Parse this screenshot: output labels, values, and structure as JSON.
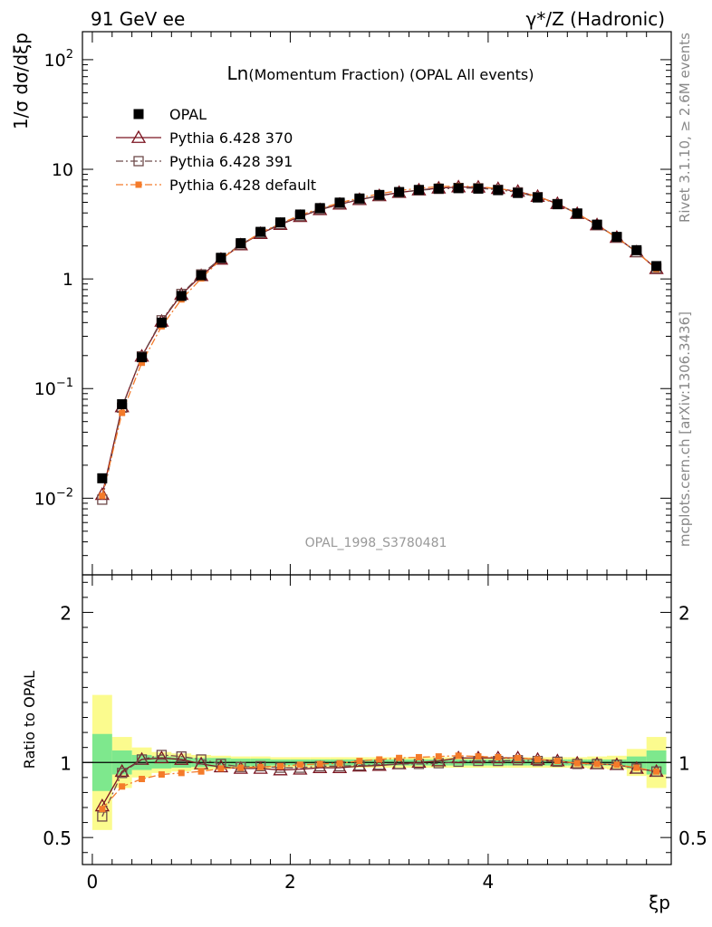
{
  "header": {
    "left_label": "91 GeV ee",
    "right_label": "γ*/Z (Hadronic)"
  },
  "side_labels": {
    "rivet": "Rivet 3.1.10, ≥ 2.6M events",
    "mcplots": "mcplots.cern.ch [arXiv:1306.3436]"
  },
  "colors": {
    "opal": "#000000",
    "py370": "#7b1420",
    "py391": "#6e4a4a",
    "pydefault": "#f47b2a",
    "band_inner": "#7ee88d",
    "band_outer": "#fbfb8e"
  },
  "chart_data": [
    {
      "type": "scatter",
      "panel": "main",
      "title": "Ln(Momentum Fraction) (OPAL All events)",
      "title_prefix": "Ln",
      "title_rest": "(Momentum Fraction) (OPAL All events)",
      "ylabel": "1/σ dσ/dξp",
      "xlabel": "",
      "yscale": "log",
      "xlim": [
        -0.1,
        5.85
      ],
      "ylim": [
        0.002,
        180
      ],
      "ytick_labels": [
        "10^-2",
        "10^-1",
        "1",
        "10",
        "10^2"
      ],
      "grid": false,
      "legend_position": "top-left",
      "watermark": "OPAL_1998_S3780481",
      "x": [
        0.1,
        0.3,
        0.5,
        0.7,
        0.9,
        1.1,
        1.3,
        1.5,
        1.7,
        1.9,
        2.1,
        2.3,
        2.5,
        2.7,
        2.9,
        3.1,
        3.3,
        3.5,
        3.7,
        3.9,
        4.1,
        4.3,
        4.5,
        4.7,
        4.9,
        5.1,
        5.3,
        5.5,
        5.7
      ],
      "series": [
        {
          "name": "OPAL",
          "marker": "filled-square",
          "line": "none",
          "values": [
            0.0152,
            0.072,
            0.193,
            0.4,
            0.7,
            1.08,
            1.56,
            2.12,
            2.69,
            3.28,
            3.87,
            4.43,
            4.97,
            5.42,
            5.84,
            6.21,
            6.49,
            6.67,
            6.73,
            6.66,
            6.45,
            6.08,
            5.53,
            4.8,
            3.96,
            3.13,
            2.42,
            1.83,
            1.31
          ]
        },
        {
          "name": "Pythia 6.428 370",
          "marker": "open-triangle",
          "line": "solid",
          "values": [
            0.0108,
            0.068,
            0.197,
            0.41,
            0.72,
            1.07,
            1.51,
            2.04,
            2.59,
            3.13,
            3.7,
            4.27,
            4.8,
            5.28,
            5.73,
            6.14,
            6.47,
            6.73,
            6.89,
            6.86,
            6.66,
            6.28,
            5.65,
            4.86,
            3.94,
            3.11,
            2.39,
            1.76,
            1.24
          ]
        },
        {
          "name": "Pythia 6.428 391",
          "marker": "open-square",
          "line": "dash-dot",
          "values": [
            0.0097,
            0.067,
            0.197,
            0.42,
            0.73,
            1.1,
            1.54,
            2.06,
            2.62,
            3.17,
            3.74,
            4.32,
            4.84,
            5.31,
            5.75,
            6.14,
            6.44,
            6.63,
            6.76,
            6.72,
            6.51,
            6.17,
            5.58,
            4.82,
            3.93,
            3.1,
            2.39,
            1.76,
            1.25
          ]
        },
        {
          "name": "Pythia 6.428 default",
          "marker": "filled-small-square",
          "line": "dash-dot",
          "values": [
            0.0105,
            0.06,
            0.172,
            0.37,
            0.65,
            1.01,
            1.51,
            2.05,
            2.64,
            3.2,
            3.82,
            4.39,
            4.95,
            5.48,
            5.98,
            6.4,
            6.72,
            6.95,
            7.04,
            6.93,
            6.68,
            6.28,
            5.63,
            4.85,
            3.94,
            3.11,
            2.38,
            1.77,
            1.23
          ]
        }
      ]
    },
    {
      "type": "scatter",
      "panel": "ratio",
      "xlabel": "ξp",
      "ylabel": "Ratio to OPAL",
      "xlim": [
        -0.1,
        5.85
      ],
      "ylim": [
        0.32,
        2.25
      ],
      "xticks": [
        0,
        2,
        4
      ],
      "yticks": [
        0.5,
        1,
        2
      ],
      "grid": false,
      "x": [
        0.1,
        0.3,
        0.5,
        0.7,
        0.9,
        1.1,
        1.3,
        1.5,
        1.7,
        1.9,
        2.1,
        2.3,
        2.5,
        2.7,
        2.9,
        3.1,
        3.3,
        3.5,
        3.7,
        3.9,
        4.1,
        4.3,
        4.5,
        4.7,
        4.9,
        5.1,
        5.3,
        5.5,
        5.7
      ],
      "bands": {
        "inner_half_width": [
          0.19,
          0.08,
          0.05,
          0.04,
          0.035,
          0.03,
          0.03,
          0.025,
          0.025,
          0.02,
          0.02,
          0.02,
          0.02,
          0.02,
          0.02,
          0.02,
          0.02,
          0.02,
          0.02,
          0.02,
          0.02,
          0.02,
          0.02,
          0.02,
          0.02,
          0.02,
          0.02,
          0.04,
          0.08
        ],
        "outer_half_width": [
          0.45,
          0.17,
          0.1,
          0.07,
          0.06,
          0.05,
          0.045,
          0.04,
          0.04,
          0.035,
          0.035,
          0.035,
          0.035,
          0.035,
          0.035,
          0.035,
          0.035,
          0.035,
          0.035,
          0.035,
          0.035,
          0.035,
          0.035,
          0.035,
          0.035,
          0.04,
          0.045,
          0.09,
          0.17
        ]
      },
      "series": [
        {
          "name": "Pythia 6.428 370",
          "marker": "open-triangle",
          "line": "solid",
          "values": [
            0.71,
            0.94,
            1.02,
            1.03,
            1.02,
            0.99,
            0.97,
            0.96,
            0.96,
            0.95,
            0.955,
            0.965,
            0.965,
            0.975,
            0.98,
            0.99,
            1.0,
            1.01,
            1.03,
            1.03,
            1.03,
            1.03,
            1.02,
            1.01,
            0.995,
            0.99,
            0.985,
            0.96,
            0.94
          ]
        },
        {
          "name": "Pythia 6.428 391",
          "marker": "open-square",
          "line": "dash-dot",
          "values": [
            0.64,
            0.93,
            1.02,
            1.05,
            1.04,
            1.02,
            0.99,
            0.97,
            0.975,
            0.965,
            0.965,
            0.975,
            0.975,
            0.98,
            0.985,
            0.99,
            0.99,
            0.995,
            1.005,
            1.01,
            1.01,
            1.015,
            1.01,
            1.005,
            0.99,
            0.99,
            0.985,
            0.96,
            0.94
          ]
        },
        {
          "name": "Pythia 6.428 default",
          "marker": "filled-small-square",
          "line": "dash-dot",
          "values": [
            0.69,
            0.84,
            0.89,
            0.92,
            0.93,
            0.94,
            0.96,
            0.965,
            0.97,
            0.975,
            0.985,
            0.99,
            0.995,
            1.01,
            1.02,
            1.03,
            1.035,
            1.04,
            1.045,
            1.04,
            1.035,
            1.03,
            1.02,
            1.01,
            0.995,
            0.99,
            0.985,
            0.965,
            0.94
          ]
        }
      ]
    }
  ]
}
